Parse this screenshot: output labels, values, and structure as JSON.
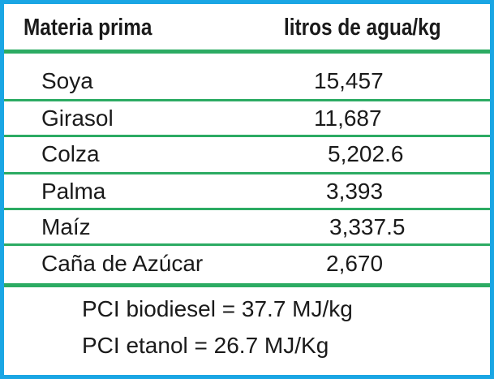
{
  "table": {
    "headers": [
      "Materia prima",
      "litros de agua/kg"
    ],
    "rows": [
      {
        "material": "Soya",
        "value": "15,457"
      },
      {
        "material": "Girasol",
        "value": "11,687"
      },
      {
        "material": "Colza",
        "value": "5,202.6"
      },
      {
        "material": "Palma",
        "value": "3,393"
      },
      {
        "material": "Maíz",
        "value": "3,337.5"
      },
      {
        "material": "Caña de Azúcar",
        "value": "2,670"
      }
    ]
  },
  "notes": [
    "PCI biodiesel = 37.7 MJ/kg",
    "PCI etanol = 26.7 MJ/Kg"
  ],
  "colors": {
    "border": "#1aa6e4",
    "rules": "#2cab63",
    "text": "#1a1a1a"
  }
}
